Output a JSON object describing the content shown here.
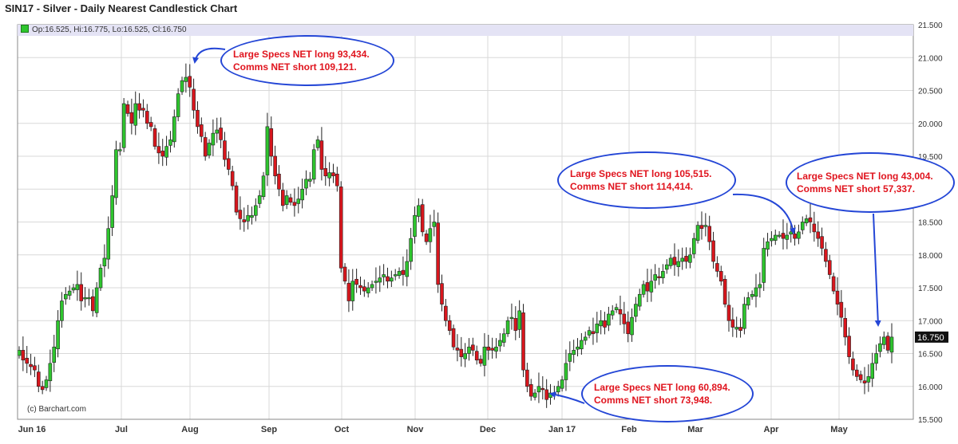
{
  "title": "SIN17 - Silver - Daily Nearest Candlestick Chart",
  "info_bar": {
    "open": "Op:16.525",
    "high": "Hi:16.775",
    "low": "Lo:16.525",
    "close": "Cl:16.750"
  },
  "copyright": "(c) Barchart.com",
  "last_price_label": "16.750",
  "colors": {
    "up": "#2ec52e",
    "down": "#d8161d",
    "callout_border": "#2446d6",
    "callout_text": "#e0141e",
    "last_price_bg": "#111111",
    "grid": "#d8d8d8"
  },
  "callouts": [
    {
      "line1": "Large Specs NET long 93,434.",
      "line2": "Comms NET short 109,121."
    },
    {
      "line1": "Large Specs NET long 105,515.",
      "line2": "Comms NET short 114,414."
    },
    {
      "line1": "Large Specs NET long 43,004.",
      "line2": "Comms NET short 57,337."
    },
    {
      "line1": "Large Specs NET long 60,894.",
      "line2": "Comms NET short 73,948."
    }
  ],
  "chart_data": {
    "type": "candlestick",
    "y_axis_side": "right",
    "ylim": [
      15.5,
      21.5
    ],
    "y_ticks": [
      "15.500",
      "16.000",
      "16.500",
      "17.000",
      "17.500",
      "18.000",
      "18.500",
      "19.000",
      "19.500",
      "20.000",
      "20.500",
      "21.000",
      "21.500"
    ],
    "x_ticks": [
      "Jun 16",
      "Jul",
      "Aug",
      "Sep",
      "Oct",
      "Nov",
      "Dec",
      "Jan 17",
      "Feb",
      "Mar",
      "Apr",
      "May"
    ],
    "grid": true,
    "closes": [
      16.55,
      16.4,
      16.35,
      16.3,
      16.25,
      16.0,
      15.95,
      16.1,
      16.35,
      16.6,
      17.0,
      17.3,
      17.4,
      17.45,
      17.5,
      17.55,
      17.3,
      17.35,
      17.35,
      17.15,
      17.5,
      17.8,
      17.95,
      18.4,
      18.9,
      19.6,
      19.6,
      20.3,
      20.15,
      20.0,
      20.3,
      20.2,
      20.2,
      20.0,
      19.95,
      19.65,
      19.55,
      19.5,
      19.65,
      19.75,
      20.1,
      20.45,
      20.65,
      20.7,
      20.55,
      20.2,
      19.95,
      19.8,
      19.5,
      19.7,
      19.85,
      19.9,
      19.75,
      19.45,
      19.3,
      19.05,
      18.65,
      18.55,
      18.5,
      18.6,
      18.6,
      18.75,
      18.9,
      19.2,
      19.95,
      19.5,
      19.2,
      19.0,
      18.75,
      18.9,
      18.8,
      18.75,
      18.85,
      19.0,
      19.15,
      19.15,
      19.6,
      19.75,
      19.3,
      19.2,
      19.25,
      19.2,
      19.05,
      17.8,
      17.6,
      17.3,
      17.6,
      17.55,
      17.5,
      17.45,
      17.5,
      17.55,
      17.6,
      17.65,
      17.7,
      17.6,
      17.65,
      17.7,
      17.75,
      17.7,
      17.9,
      18.25,
      18.6,
      18.75,
      18.35,
      18.2,
      18.4,
      18.5,
      17.55,
      17.25,
      17.0,
      16.85,
      16.6,
      16.55,
      16.45,
      16.5,
      16.6,
      16.55,
      16.4,
      16.35,
      16.6,
      16.55,
      16.55,
      16.6,
      16.7,
      16.8,
      17.0,
      17.05,
      16.85,
      17.15,
      16.25,
      16.0,
      15.85,
      15.9,
      16.0,
      15.95,
      15.8,
      15.9,
      15.9,
      16.0,
      16.1,
      16.35,
      16.5,
      16.55,
      16.6,
      16.7,
      16.75,
      16.85,
      16.8,
      16.95,
      17.0,
      16.9,
      17.1,
      17.15,
      17.2,
      17.1,
      16.95,
      16.8,
      17.05,
      17.25,
      17.4,
      17.55,
      17.45,
      17.6,
      17.7,
      17.65,
      17.75,
      17.85,
      17.95,
      17.85,
      17.9,
      17.95,
      17.9,
      18.0,
      18.25,
      18.45,
      18.4,
      18.45,
      18.2,
      17.9,
      17.75,
      17.6,
      17.25,
      17.0,
      16.9,
      16.9,
      16.85,
      17.25,
      17.35,
      17.4,
      17.5,
      17.55,
      18.1,
      18.2,
      18.25,
      18.3,
      18.3,
      18.25,
      18.3,
      18.35,
      18.25,
      18.35,
      18.5,
      18.55,
      18.5,
      18.35,
      18.25,
      18.1,
      17.9,
      17.7,
      17.45,
      17.25,
      17.05,
      16.75,
      16.45,
      16.25,
      16.15,
      16.1,
      16.05,
      16.15,
      16.35,
      16.5,
      16.65,
      16.75,
      16.55,
      16.75
    ]
  }
}
